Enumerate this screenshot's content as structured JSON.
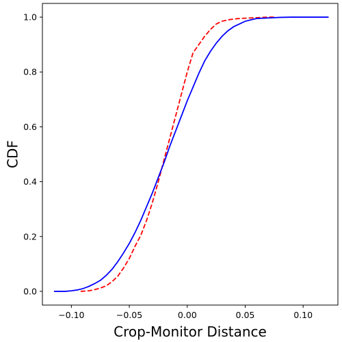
{
  "chart_data": {
    "type": "line",
    "title": "",
    "xlabel": "Crop-Monitor Distance",
    "ylabel": "CDF",
    "xlim": [
      -0.125,
      0.13
    ],
    "ylim": [
      -0.05,
      1.05
    ],
    "xticks": [
      -0.1,
      -0.05,
      0.0,
      0.05,
      0.1
    ],
    "xtick_labels": [
      "−0.10",
      "−0.05",
      "0.00",
      "0.05",
      "0.10"
    ],
    "yticks": [
      0.0,
      0.2,
      0.4,
      0.6,
      0.8,
      1.0
    ],
    "ytick_labels": [
      "0.0",
      "0.2",
      "0.4",
      "0.6",
      "0.8",
      "1.0"
    ],
    "grid": false,
    "legend": "none",
    "series": [
      {
        "color": "#ff0000",
        "linestyle": "dashed",
        "x": [
          -0.092,
          -0.085,
          -0.08,
          -0.075,
          -0.07,
          -0.065,
          -0.06,
          -0.055,
          -0.05,
          -0.045,
          -0.04,
          -0.035,
          -0.03,
          -0.025,
          -0.02,
          -0.015,
          -0.01,
          -0.005,
          0.0,
          0.005,
          0.01,
          0.015,
          0.02,
          0.025,
          0.03,
          0.035,
          0.04,
          0.045,
          0.05,
          0.055,
          0.06,
          0.065,
          0.07,
          0.076
        ],
        "y": [
          0.0,
          0.002,
          0.006,
          0.012,
          0.02,
          0.035,
          0.055,
          0.085,
          0.12,
          0.165,
          0.205,
          0.26,
          0.325,
          0.4,
          0.48,
          0.56,
          0.64,
          0.72,
          0.8,
          0.87,
          0.9,
          0.93,
          0.955,
          0.975,
          0.985,
          0.99,
          0.993,
          0.995,
          0.996,
          0.997,
          0.998,
          0.999,
          1.0,
          1.0
        ]
      },
      {
        "color": "#0000ff",
        "linestyle": "solid",
        "x": [
          -0.115,
          -0.105,
          -0.1,
          -0.095,
          -0.09,
          -0.085,
          -0.08,
          -0.075,
          -0.07,
          -0.065,
          -0.06,
          -0.055,
          -0.05,
          -0.045,
          -0.04,
          -0.035,
          -0.03,
          -0.025,
          -0.02,
          -0.015,
          -0.01,
          -0.005,
          0.0,
          0.005,
          0.01,
          0.015,
          0.02,
          0.025,
          0.03,
          0.035,
          0.04,
          0.045,
          0.05,
          0.055,
          0.06,
          0.07,
          0.08,
          0.09,
          0.1,
          0.11,
          0.122
        ],
        "y": [
          0.0,
          0.0,
          0.002,
          0.005,
          0.01,
          0.018,
          0.028,
          0.04,
          0.058,
          0.08,
          0.108,
          0.14,
          0.175,
          0.215,
          0.26,
          0.31,
          0.36,
          0.415,
          0.47,
          0.53,
          0.585,
          0.64,
          0.695,
          0.745,
          0.795,
          0.84,
          0.875,
          0.905,
          0.93,
          0.95,
          0.965,
          0.975,
          0.985,
          0.99,
          0.995,
          0.997,
          0.999,
          1.0,
          1.0,
          1.0,
          1.0
        ]
      }
    ]
  }
}
